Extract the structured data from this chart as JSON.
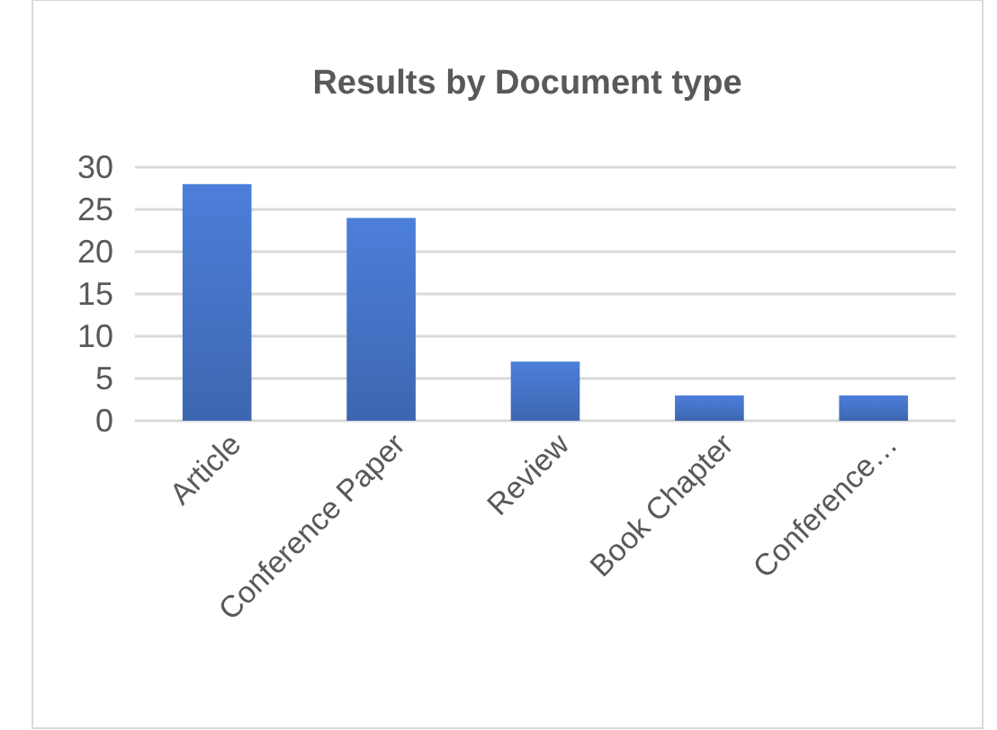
{
  "chart_data": {
    "type": "bar",
    "title": "Results by Document type",
    "categories": [
      "Article",
      "Conference Paper",
      "Review",
      "Book Chapter",
      "Conference…"
    ],
    "values": [
      28,
      24,
      7,
      3,
      3
    ],
    "color": "#4472c4",
    "ylim": [
      0,
      30
    ],
    "yticks": [
      0,
      5,
      10,
      15,
      20,
      25,
      30
    ],
    "grid": "y"
  }
}
